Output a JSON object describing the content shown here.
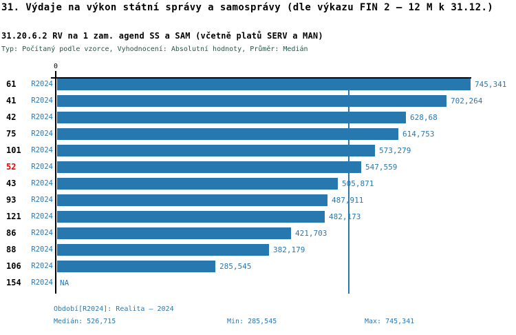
{
  "title": "31. Výdaje na výkon státní správy a samosprávy (dle výkazu FIN 2 – 12 M k 31.12.)",
  "subtitle": "31.20.6.2 RV na 1 zam. agend SS a SAM (včetně platů SERV a MAN)",
  "meta_line": "Typ: Počítaný podle vzorce, Vyhodnocení: Absolutní hodnoty, Průměr: Medián",
  "chart_data": {
    "type": "bar",
    "orientation": "horizontal",
    "xlim": [
      0,
      745341
    ],
    "zero_label": "0",
    "median_value": 526715,
    "rows": [
      {
        "id": "61",
        "period": "R2024",
        "value": 745341,
        "value_label": "745,341",
        "highlighted": false
      },
      {
        "id": "41",
        "period": "R2024",
        "value": 702264,
        "value_label": "702,264",
        "highlighted": false
      },
      {
        "id": "42",
        "period": "R2024",
        "value": 628680,
        "value_label": "628,68",
        "highlighted": false
      },
      {
        "id": "75",
        "period": "R2024",
        "value": 614753,
        "value_label": "614,753",
        "highlighted": false
      },
      {
        "id": "101",
        "period": "R2024",
        "value": 573279,
        "value_label": "573,279",
        "highlighted": false
      },
      {
        "id": "52",
        "period": "R2024",
        "value": 547559,
        "value_label": "547,559",
        "highlighted": true
      },
      {
        "id": "43",
        "period": "R2024",
        "value": 505871,
        "value_label": "505,871",
        "highlighted": false
      },
      {
        "id": "93",
        "period": "R2024",
        "value": 487911,
        "value_label": "487,911",
        "highlighted": false
      },
      {
        "id": "121",
        "period": "R2024",
        "value": 482173,
        "value_label": "482,173",
        "highlighted": false
      },
      {
        "id": "86",
        "period": "R2024",
        "value": 421703,
        "value_label": "421,703",
        "highlighted": false
      },
      {
        "id": "88",
        "period": "R2024",
        "value": 382179,
        "value_label": "382,179",
        "highlighted": false
      },
      {
        "id": "106",
        "period": "R2024",
        "value": 285545,
        "value_label": "285,545",
        "highlighted": false
      },
      {
        "id": "154",
        "period": "R2024",
        "value": null,
        "value_label": "NA",
        "highlighted": false
      }
    ]
  },
  "footer": {
    "period_line": "Období[R2024]: Realita – 2024",
    "median_label": "Medián: 526,715",
    "min_label": "Min: 285,545",
    "max_label": "Max: 745,341"
  },
  "colors": {
    "bar_blue": "#2878b0",
    "text_blue": "#2878b0",
    "highlight_red": "#ee0000",
    "meta_green": "#23584a",
    "axis_black": "#000000"
  }
}
